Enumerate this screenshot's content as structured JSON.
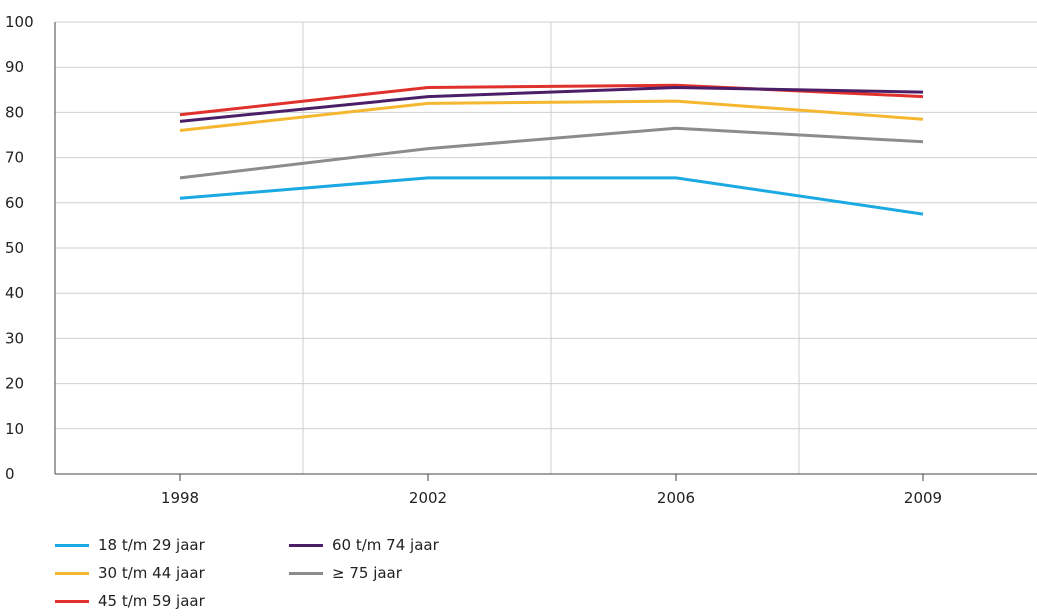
{
  "chart_data": {
    "type": "line",
    "title": "",
    "xlabel": "",
    "ylabel": "",
    "categories": [
      "1998",
      "2002",
      "2006",
      "2009"
    ],
    "ylim": [
      0,
      100
    ],
    "yticks": [
      0,
      10,
      20,
      30,
      40,
      50,
      60,
      70,
      80,
      90,
      100
    ],
    "grid": true,
    "legend_position": "bottom-left",
    "series": [
      {
        "name": "18 t/m 29 jaar",
        "color": "#1aa9e2",
        "values": [
          61,
          65.5,
          65.5,
          57.5
        ]
      },
      {
        "name": "30 t/m 44 jaar",
        "color": "#f5b730",
        "values": [
          76,
          82,
          82.5,
          78.5
        ]
      },
      {
        "name": "45 t/m 59 jaar",
        "color": "#e0312c",
        "values": [
          79.5,
          85.5,
          86,
          83.5
        ]
      },
      {
        "name": "60 t/m 74 jaar",
        "color": "#4a1f67",
        "values": [
          78,
          83.5,
          85.5,
          84.5
        ]
      },
      {
        "name": "≥ 75 jaar",
        "color": "#8c8c8c",
        "values": [
          65.5,
          72,
          76.5,
          73.5
        ]
      }
    ]
  }
}
